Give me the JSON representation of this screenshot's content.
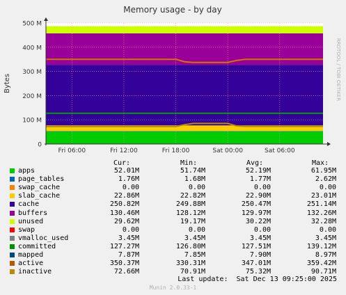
{
  "chart_data": {
    "type": "area",
    "title": "Memory usage - by day",
    "ylabel": "Bytes",
    "side_label": "RRDTOOL / TOBI OETIKER",
    "x_ticks": [
      "Fri 06:00",
      "Fri 12:00",
      "Fri 18:00",
      "Sat 00:00",
      "Sat 06:00"
    ],
    "y_ticks": [
      "0",
      "100 M",
      "200 M",
      "300 M",
      "400 M",
      "500 M"
    ],
    "ylim": [
      0,
      500
    ],
    "xlim_hours": [
      3,
      35
    ],
    "x_tick_hours": [
      6,
      12,
      18,
      24,
      30
    ],
    "grid": true,
    "stacked_series": [
      {
        "name": "apps",
        "color": "#00cc00",
        "values": [
          52,
          52,
          52,
          52,
          52,
          52,
          52,
          52,
          52,
          52,
          52,
          52,
          52,
          52,
          52,
          52,
          52,
          52,
          52,
          52,
          52,
          52,
          52,
          52,
          52,
          52,
          52,
          52,
          52,
          52,
          52,
          52,
          52
        ]
      },
      {
        "name": "page_tables",
        "color": "#0066b3",
        "values": [
          1.8,
          1.8,
          1.8,
          1.8,
          1.8,
          1.8,
          1.8,
          1.8,
          1.8,
          1.8,
          1.8,
          1.8,
          1.8,
          1.8,
          1.8,
          1.8,
          1.8,
          1.8,
          1.8,
          1.8,
          1.8,
          1.8,
          1.8,
          1.8,
          1.8,
          1.8,
          1.8,
          1.8,
          1.8,
          1.8,
          1.8,
          1.8,
          1.8
        ]
      },
      {
        "name": "swap_cache",
        "color": "#ff8000",
        "values": [
          0,
          0,
          0,
          0,
          0,
          0,
          0,
          0,
          0,
          0,
          0,
          0,
          0,
          0,
          0,
          0,
          0,
          0,
          0,
          0,
          0,
          0,
          0,
          0,
          0,
          0,
          0,
          0,
          0,
          0,
          0,
          0,
          0
        ]
      },
      {
        "name": "slab_cache",
        "color": "#ffcc00",
        "values": [
          22.9,
          22.9,
          22.9,
          22.9,
          22.9,
          22.9,
          22.9,
          22.9,
          22.9,
          22.9,
          22.9,
          22.9,
          22.9,
          22.9,
          22.9,
          22.9,
          22.9,
          22.9,
          22.9,
          22.9,
          22.9,
          22.9,
          22.9,
          22.9,
          22.9,
          22.9,
          22.9,
          22.9,
          22.9,
          22.9,
          22.9,
          22.9,
          22.9
        ]
      },
      {
        "name": "cache",
        "color": "#330099",
        "values": [
          250.5,
          250.5,
          250.5,
          250.5,
          250.5,
          250.5,
          250.5,
          250.5,
          250.5,
          250.5,
          250.5,
          250.5,
          250.5,
          250.5,
          250.5,
          250.5,
          250.5,
          250.5,
          250.5,
          250.5,
          250.5,
          250.5,
          250.5,
          250.5,
          250.5,
          250.5,
          250.5,
          250.5,
          250.5,
          250.5,
          250.5,
          250.5,
          250.5
        ]
      },
      {
        "name": "buffers",
        "color": "#990099",
        "values": [
          130,
          130,
          130,
          130,
          130,
          130,
          130,
          130,
          130,
          130,
          130,
          130,
          130,
          130,
          130,
          130,
          130,
          130,
          130,
          130,
          130,
          130,
          130,
          130,
          130,
          130,
          130,
          130,
          130,
          130,
          130,
          130,
          130
        ]
      },
      {
        "name": "unused",
        "color": "#ccff00",
        "values": [
          29.6,
          29.6,
          29.6,
          29.6,
          29.6,
          29.6,
          29.6,
          29.6,
          29.6,
          29.6,
          29.6,
          29.6,
          29.6,
          29.6,
          29.6,
          29.6,
          29.6,
          29.6,
          29.6,
          29.6,
          29.6,
          29.6,
          29.6,
          29.6,
          29.6,
          29.6,
          29.6,
          29.6,
          29.6,
          29.6,
          29.6,
          29.6,
          29.6
        ]
      }
    ],
    "line_series": [
      {
        "name": "committed",
        "color": "#00a000",
        "values": [
          127,
          127,
          127,
          127,
          127,
          127,
          127,
          127,
          127,
          127,
          127,
          127,
          127,
          127,
          127,
          127,
          127,
          127,
          127,
          127,
          127,
          127,
          127,
          127,
          127,
          127,
          127,
          127,
          127,
          127,
          127,
          127,
          127
        ]
      },
      {
        "name": "active",
        "color": "#cc7700",
        "values": [
          350,
          350,
          350,
          350,
          350,
          350,
          350,
          350,
          350,
          350,
          350,
          350,
          350,
          350,
          350,
          350,
          340,
          337,
          337,
          337,
          337,
          337,
          345,
          350,
          350,
          350,
          350,
          350,
          350,
          350,
          350,
          350,
          350
        ]
      },
      {
        "name": "inactive",
        "color": "#b39000",
        "values": [
          72,
          72,
          72,
          72,
          72,
          72,
          72,
          72,
          72,
          72,
          72,
          72,
          72,
          72,
          72,
          72,
          80,
          85,
          85,
          85,
          85,
          85,
          75,
          73,
          73,
          73,
          73,
          73,
          73,
          73,
          73,
          73,
          73
        ]
      }
    ],
    "sample_hours": [
      3,
      4,
      5,
      6,
      7,
      8,
      9,
      10,
      11,
      12,
      13,
      14,
      15,
      16,
      17,
      18,
      19,
      20,
      21,
      22,
      23,
      24,
      25,
      26,
      27,
      28,
      29,
      30,
      31,
      32,
      33,
      34,
      35
    ]
  },
  "legend": {
    "headers": [
      "Cur:",
      "Min:",
      "Avg:",
      "Max:"
    ],
    "rows": [
      {
        "name": "apps",
        "color": "#00cc00",
        "cur": "52.01M",
        "min": "51.74M",
        "avg": "52.19M",
        "max": "61.95M"
      },
      {
        "name": "page_tables",
        "color": "#0066b3",
        "cur": "1.76M",
        "min": "1.68M",
        "avg": "1.77M",
        "max": "2.62M"
      },
      {
        "name": "swap_cache",
        "color": "#ff8000",
        "cur": "0.00",
        "min": "0.00",
        "avg": "0.00",
        "max": "0.00"
      },
      {
        "name": "slab_cache",
        "color": "#ffcc00",
        "cur": "22.86M",
        "min": "22.82M",
        "avg": "22.90M",
        "max": "23.01M"
      },
      {
        "name": "cache",
        "color": "#330099",
        "cur": "250.82M",
        "min": "249.88M",
        "avg": "250.47M",
        "max": "251.14M"
      },
      {
        "name": "buffers",
        "color": "#990099",
        "cur": "130.46M",
        "min": "128.12M",
        "avg": "129.97M",
        "max": "132.26M"
      },
      {
        "name": "unused",
        "color": "#ccff00",
        "cur": "29.62M",
        "min": "19.17M",
        "avg": "30.22M",
        "max": "32.28M"
      },
      {
        "name": "swap",
        "color": "#ff0000",
        "cur": "0.00",
        "min": "0.00",
        "avg": "0.00",
        "max": "0.00"
      },
      {
        "name": "vmalloc_used",
        "color": "#808080",
        "cur": "3.45M",
        "min": "3.45M",
        "avg": "3.45M",
        "max": "3.45M"
      },
      {
        "name": "committed",
        "color": "#008f00",
        "cur": "127.27M",
        "min": "126.80M",
        "avg": "127.51M",
        "max": "139.12M"
      },
      {
        "name": "mapped",
        "color": "#00487d",
        "cur": "7.87M",
        "min": "7.85M",
        "avg": "7.90M",
        "max": "8.97M"
      },
      {
        "name": "active",
        "color": "#b35a00",
        "cur": "350.37M",
        "min": "330.31M",
        "avg": "347.01M",
        "max": "359.42M"
      },
      {
        "name": "inactive",
        "color": "#b38f00",
        "cur": "72.66M",
        "min": "70.91M",
        "avg": "75.32M",
        "max": "90.71M"
      }
    ],
    "last_update": "Last update:  Sat Dec 13 09:25:00 2025",
    "footer": "Munin 2.0.33-1"
  }
}
